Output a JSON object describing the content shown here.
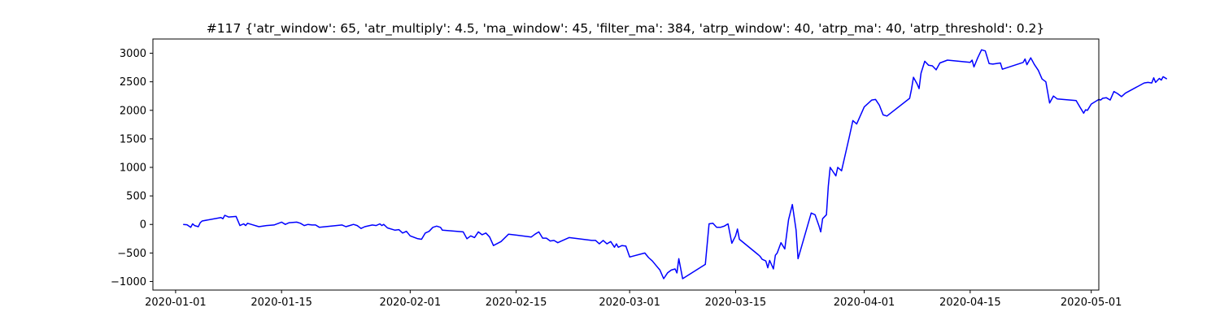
{
  "chart_data": {
    "type": "line",
    "title": "#117 {'atr_window': 65, 'atr_multiply': 4.5, 'ma_window': 45, 'filter_ma': 384, 'atrp_window': 40, 'atrp_ma': 40, 'atrp_threshold': 0.2}",
    "xlabel": "",
    "ylabel": "",
    "x_range": [
      "2019-12-29",
      "2020-05-02"
    ],
    "ylim": [
      -1150,
      3250
    ],
    "grid": false,
    "x_ticks": [
      "2020-01-01",
      "2020-01-15",
      "2020-02-01",
      "2020-02-15",
      "2020-03-01",
      "2020-03-15",
      "2020-04-01",
      "2020-04-15",
      "2020-05-01"
    ],
    "y_ticks": [
      -1000,
      -500,
      0,
      500,
      1000,
      1500,
      2000,
      2500,
      3000
    ],
    "series": [
      {
        "color": "#0000ff",
        "points": [
          [
            "2020-01-02",
            0
          ],
          [
            "2020-01-02T12",
            -5
          ],
          [
            "2020-01-03",
            -50
          ],
          [
            "2020-01-03T06",
            10
          ],
          [
            "2020-01-03T12",
            -20
          ],
          [
            "2020-01-04",
            -40
          ],
          [
            "2020-01-04T06",
            30
          ],
          [
            "2020-01-04T12",
            60
          ],
          [
            "2020-01-07",
            120
          ],
          [
            "2020-01-07T06",
            100
          ],
          [
            "2020-01-07T12",
            160
          ],
          [
            "2020-01-08",
            130
          ],
          [
            "2020-01-09",
            140
          ],
          [
            "2020-01-09T12",
            -20
          ],
          [
            "2020-01-10",
            10
          ],
          [
            "2020-01-10T06",
            -20
          ],
          [
            "2020-01-10T12",
            20
          ],
          [
            "2020-01-11",
            0
          ],
          [
            "2020-01-12",
            -40
          ],
          [
            "2020-01-13",
            -20
          ],
          [
            "2020-01-14",
            -10
          ],
          [
            "2020-01-15",
            40
          ],
          [
            "2020-01-15T12",
            0
          ],
          [
            "2020-01-16",
            30
          ],
          [
            "2020-01-17",
            40
          ],
          [
            "2020-01-17T12",
            20
          ],
          [
            "2020-01-18",
            -20
          ],
          [
            "2020-01-18T12",
            0
          ],
          [
            "2020-01-19",
            -10
          ],
          [
            "2020-01-19T12",
            -10
          ],
          [
            "2020-01-20",
            -50
          ],
          [
            "2020-01-23",
            -10
          ],
          [
            "2020-01-23T12",
            -40
          ],
          [
            "2020-01-24",
            -20
          ],
          [
            "2020-01-24T12",
            0
          ],
          [
            "2020-01-25",
            -20
          ],
          [
            "2020-01-25T12",
            -70
          ],
          [
            "2020-01-26",
            -40
          ],
          [
            "2020-01-27",
            -10
          ],
          [
            "2020-01-27T12",
            -20
          ],
          [
            "2020-01-28",
            10
          ],
          [
            "2020-01-28T06",
            -20
          ],
          [
            "2020-01-28T12",
            0
          ],
          [
            "2020-01-29",
            -60
          ],
          [
            "2020-01-30",
            -100
          ],
          [
            "2020-01-30T12",
            -90
          ],
          [
            "2020-01-31",
            -150
          ],
          [
            "2020-01-31T12",
            -120
          ],
          [
            "2020-02-01",
            -200
          ],
          [
            "2020-02-02",
            -250
          ],
          [
            "2020-02-02T12",
            -260
          ],
          [
            "2020-02-03",
            -150
          ],
          [
            "2020-02-03T12",
            -120
          ],
          [
            "2020-02-04",
            -50
          ],
          [
            "2020-02-04T12",
            -30
          ],
          [
            "2020-02-05",
            -50
          ],
          [
            "2020-02-05T06",
            -100
          ],
          [
            "2020-02-08",
            -130
          ],
          [
            "2020-02-08T12",
            -250
          ],
          [
            "2020-02-09",
            -200
          ],
          [
            "2020-02-09T12",
            -230
          ],
          [
            "2020-02-10",
            -130
          ],
          [
            "2020-02-10T12",
            -180
          ],
          [
            "2020-02-11",
            -150
          ],
          [
            "2020-02-11T12",
            -220
          ],
          [
            "2020-02-12",
            -370
          ],
          [
            "2020-02-13",
            -300
          ],
          [
            "2020-02-14",
            -170
          ],
          [
            "2020-02-17",
            -220
          ],
          [
            "2020-02-17T12",
            -170
          ],
          [
            "2020-02-18",
            -130
          ],
          [
            "2020-02-18T12",
            -240
          ],
          [
            "2020-02-19",
            -240
          ],
          [
            "2020-02-19T12",
            -290
          ],
          [
            "2020-02-20",
            -280
          ],
          [
            "2020-02-20T12",
            -320
          ],
          [
            "2020-02-21",
            -290
          ],
          [
            "2020-02-22",
            -230
          ],
          [
            "2020-02-25",
            -280
          ],
          [
            "2020-02-25T12",
            -280
          ],
          [
            "2020-02-26",
            -340
          ],
          [
            "2020-02-26T12",
            -280
          ],
          [
            "2020-02-27",
            -340
          ],
          [
            "2020-02-27T12",
            -300
          ],
          [
            "2020-02-28",
            -400
          ],
          [
            "2020-02-28T06",
            -340
          ],
          [
            "2020-02-28T12",
            -400
          ],
          [
            "2020-02-29",
            -370
          ],
          [
            "2020-02-29T12",
            -380
          ],
          [
            "2020-03-01",
            -570
          ],
          [
            "2020-03-03",
            -500
          ],
          [
            "2020-03-03T12",
            -580
          ],
          [
            "2020-03-04",
            -640
          ],
          [
            "2020-03-04T12",
            -720
          ],
          [
            "2020-03-05",
            -800
          ],
          [
            "2020-03-05T12",
            -950
          ],
          [
            "2020-03-06",
            -850
          ],
          [
            "2020-03-06T12",
            -800
          ],
          [
            "2020-03-07",
            -780
          ],
          [
            "2020-03-07T06",
            -850
          ],
          [
            "2020-03-07T12",
            -600
          ],
          [
            "2020-03-08",
            -950
          ],
          [
            "2020-03-11",
            -700
          ],
          [
            "2020-03-11T12",
            10
          ],
          [
            "2020-03-12",
            20
          ],
          [
            "2020-03-12T12",
            -50
          ],
          [
            "2020-03-13",
            -50
          ],
          [
            "2020-03-13T12",
            -30
          ],
          [
            "2020-03-14",
            10
          ],
          [
            "2020-03-14T12",
            -330
          ],
          [
            "2020-03-15",
            -200
          ],
          [
            "2020-03-15T06",
            -80
          ],
          [
            "2020-03-15T12",
            -260
          ],
          [
            "2020-03-18",
            -530
          ],
          [
            "2020-03-18T06",
            -560
          ],
          [
            "2020-03-18T12",
            -610
          ],
          [
            "2020-03-19",
            -640
          ],
          [
            "2020-03-19T06",
            -760
          ],
          [
            "2020-03-19T12",
            -630
          ],
          [
            "2020-03-20",
            -780
          ],
          [
            "2020-03-20T06",
            -540
          ],
          [
            "2020-03-20T12",
            -500
          ],
          [
            "2020-03-21",
            -320
          ],
          [
            "2020-03-21T12",
            -430
          ],
          [
            "2020-03-22",
            80
          ],
          [
            "2020-03-22T12",
            350
          ],
          [
            "2020-03-23",
            -100
          ],
          [
            "2020-03-23T06",
            -600
          ],
          [
            "2020-03-25",
            200
          ],
          [
            "2020-03-25T12",
            170
          ],
          [
            "2020-03-26",
            -20
          ],
          [
            "2020-03-26T06",
            -130
          ],
          [
            "2020-03-26T12",
            100
          ],
          [
            "2020-03-27",
            170
          ],
          [
            "2020-03-27T06",
            670
          ],
          [
            "2020-03-27T12",
            1000
          ],
          [
            "2020-03-28",
            900
          ],
          [
            "2020-03-28T06",
            850
          ],
          [
            "2020-03-28T12",
            1000
          ],
          [
            "2020-03-29",
            940
          ],
          [
            "2020-03-30",
            1520
          ],
          [
            "2020-03-30T12",
            1820
          ],
          [
            "2020-03-31",
            1760
          ],
          [
            "2020-04-01",
            2060
          ],
          [
            "2020-04-02",
            2180
          ],
          [
            "2020-04-02T12",
            2190
          ],
          [
            "2020-04-03",
            2090
          ],
          [
            "2020-04-03T12",
            1920
          ],
          [
            "2020-04-04",
            1900
          ],
          [
            "2020-04-07",
            2210
          ],
          [
            "2020-04-07T06",
            2370
          ],
          [
            "2020-04-07T12",
            2580
          ],
          [
            "2020-04-08",
            2460
          ],
          [
            "2020-04-08T06",
            2380
          ],
          [
            "2020-04-08T12",
            2650
          ],
          [
            "2020-04-09",
            2860
          ],
          [
            "2020-04-09T12",
            2790
          ],
          [
            "2020-04-10",
            2780
          ],
          [
            "2020-04-10T12",
            2710
          ],
          [
            "2020-04-11",
            2830
          ],
          [
            "2020-04-12",
            2880
          ],
          [
            "2020-04-15",
            2840
          ],
          [
            "2020-04-15T06",
            2880
          ],
          [
            "2020-04-15T12",
            2760
          ],
          [
            "2020-04-16",
            2920
          ],
          [
            "2020-04-16T12",
            3060
          ],
          [
            "2020-04-17",
            3040
          ],
          [
            "2020-04-17T12",
            2820
          ],
          [
            "2020-04-18",
            2810
          ],
          [
            "2020-04-19",
            2830
          ],
          [
            "2020-04-19T06",
            2720
          ],
          [
            "2020-04-22",
            2840
          ],
          [
            "2020-04-22T06",
            2900
          ],
          [
            "2020-04-22T12",
            2800
          ],
          [
            "2020-04-23",
            2920
          ],
          [
            "2020-04-23T12",
            2800
          ],
          [
            "2020-04-24",
            2700
          ],
          [
            "2020-04-24T12",
            2550
          ],
          [
            "2020-04-25",
            2500
          ],
          [
            "2020-04-25T12",
            2130
          ],
          [
            "2020-04-26",
            2250
          ],
          [
            "2020-04-26T12",
            2200
          ],
          [
            "2020-04-29",
            2170
          ],
          [
            "2020-04-29T12",
            2060
          ],
          [
            "2020-04-30",
            1950
          ],
          [
            "2020-04-30T06",
            2010
          ],
          [
            "2020-04-30T12",
            2000
          ],
          [
            "2020-05-01",
            2110
          ],
          [
            "2020-05-02",
            2190
          ],
          [
            "2020-05-02T06",
            2180
          ],
          [
            "2020-05-02T12",
            2210
          ],
          [
            "2020-05-03",
            2220
          ],
          [
            "2020-05-03T12",
            2180
          ],
          [
            "2020-05-04",
            2330
          ],
          [
            "2020-05-04T12",
            2290
          ],
          [
            "2020-05-05",
            2240
          ],
          [
            "2020-05-05T12",
            2300
          ],
          [
            "2020-05-08",
            2480
          ],
          [
            "2020-05-08T12",
            2490
          ],
          [
            "2020-05-09",
            2480
          ],
          [
            "2020-05-09T06",
            2570
          ],
          [
            "2020-05-09T12",
            2490
          ],
          [
            "2020-05-10",
            2560
          ],
          [
            "2020-05-10T06",
            2530
          ],
          [
            "2020-05-10T12",
            2590
          ],
          [
            "2020-05-11",
            2550
          ]
        ]
      }
    ]
  }
}
